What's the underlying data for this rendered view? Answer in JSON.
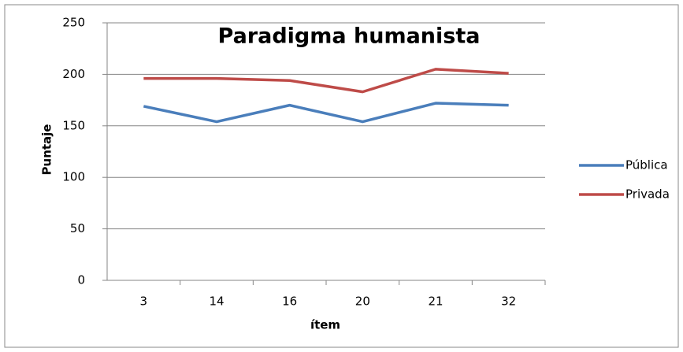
{
  "chart_data": {
    "type": "line",
    "title": "Paradigma humanista",
    "categories": [
      "3",
      "14",
      "16",
      "20",
      "21",
      "32"
    ],
    "series": [
      {
        "name": "Pública",
        "color": "#4a7ebb",
        "values": [
          169,
          154,
          170,
          154,
          172,
          170
        ]
      },
      {
        "name": "Privada",
        "color": "#be4b48",
        "values": [
          196,
          196,
          194,
          183,
          205,
          201
        ]
      }
    ],
    "ylim": [
      0,
      250
    ],
    "yticks": [
      0,
      50,
      100,
      150,
      200,
      250
    ],
    "grid": true,
    "xlabel": "ítem",
    "ylabel": "Puntaje",
    "legend": "right"
  }
}
